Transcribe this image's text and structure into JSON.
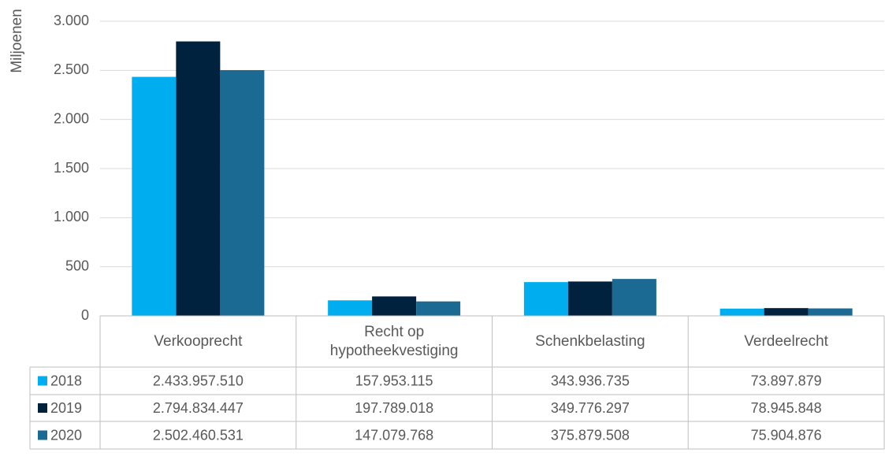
{
  "chart_data": {
    "type": "bar",
    "y_label": "Miljoenen",
    "categories": [
      "Verkooprecht",
      "Recht op hypotheekvestiging",
      "Schenkbelasting",
      "Verdeelrecht"
    ],
    "series": [
      {
        "name": "2018",
        "color": "#00aeef",
        "values": [
          2433.95751,
          157.953115,
          343.936735,
          73.897879
        ],
        "value_labels": [
          "2.433.957.510",
          "157.953.115",
          "343.936.735",
          "73.897.879"
        ]
      },
      {
        "name": "2019",
        "color": "#00223f",
        "values": [
          2794.834447,
          197.789018,
          349.776297,
          78.945848
        ],
        "value_labels": [
          "2.794.834.447",
          "197.789.018",
          "349.776.297",
          "78.945.848"
        ]
      },
      {
        "name": "2020",
        "color": "#1b6a93",
        "values": [
          2502.460531,
          147.079768,
          375.879508,
          75.904876
        ],
        "value_labels": [
          "2.502.460.531",
          "147.079.768",
          "375.879.508",
          "75.904.876"
        ]
      }
    ],
    "ylim": [
      0,
      3000
    ],
    "yticks": [
      0,
      500,
      {
        "value": 1000,
        "label": "1.000"
      },
      {
        "value": 1500,
        "label": "1.500"
      },
      {
        "value": 2000,
        "label": "2.000"
      },
      {
        "value": 2500,
        "label": "2.500"
      },
      {
        "value": 3000,
        "label": "3.000"
      }
    ],
    "grid": true
  }
}
